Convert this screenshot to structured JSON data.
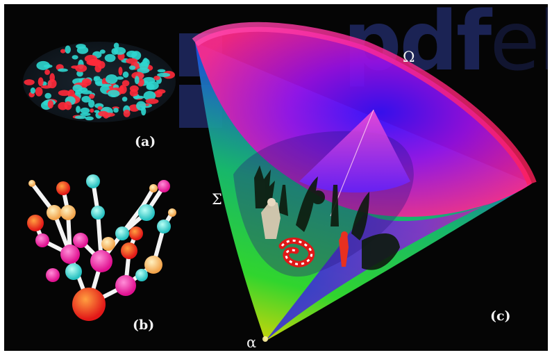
{
  "panels": {
    "a_label": "(a)",
    "b_label": "(b)",
    "c_label": "(c)"
  },
  "cone": {
    "omega_label": "Ω",
    "sigma_label": "Σ",
    "alpha_label": "α"
  },
  "watermark": {
    "text_bold": "pdf",
    "text_light": "el"
  },
  "colors": {
    "background": "#050505",
    "magenta": "#ff1f8f",
    "blue": "#2a2cff",
    "green": "#17d24a",
    "cyan": "#2fd6cf",
    "red": "#ff2a3a"
  }
}
